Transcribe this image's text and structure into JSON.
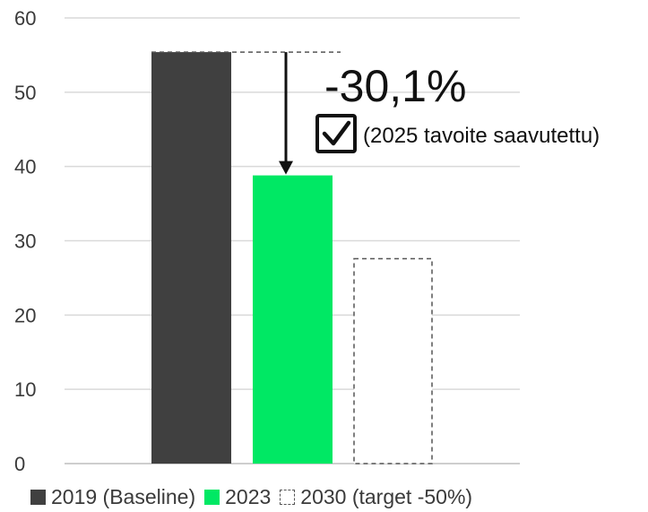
{
  "chart_data": {
    "type": "bar",
    "categories": [
      "2019 (Baseline)",
      "2023",
      "2030 (target -50%)"
    ],
    "values": [
      55.4,
      38.8,
      27.7
    ],
    "styles": [
      "solid",
      "solid",
      "dashed-outline"
    ],
    "colors": [
      "#404040",
      "#00e864",
      "#ffffff"
    ],
    "ylim": [
      0,
      60
    ],
    "yticks": [
      0,
      10,
      20,
      30,
      40,
      50,
      60
    ],
    "grid": true,
    "legend": {
      "placement": "bottom",
      "items": [
        {
          "label": "2019 (Baseline)",
          "color": "#404040",
          "style": "solid"
        },
        {
          "label": "2023",
          "color": "#00e864",
          "style": "solid"
        },
        {
          "label": "2030 (target -50%)",
          "color": "#555555",
          "style": "dashed-outline"
        }
      ]
    },
    "annotation": {
      "change": "-30,1%",
      "note": "(2025 tavoite saavutettu)",
      "icon": "checkbox-checked-icon"
    }
  }
}
